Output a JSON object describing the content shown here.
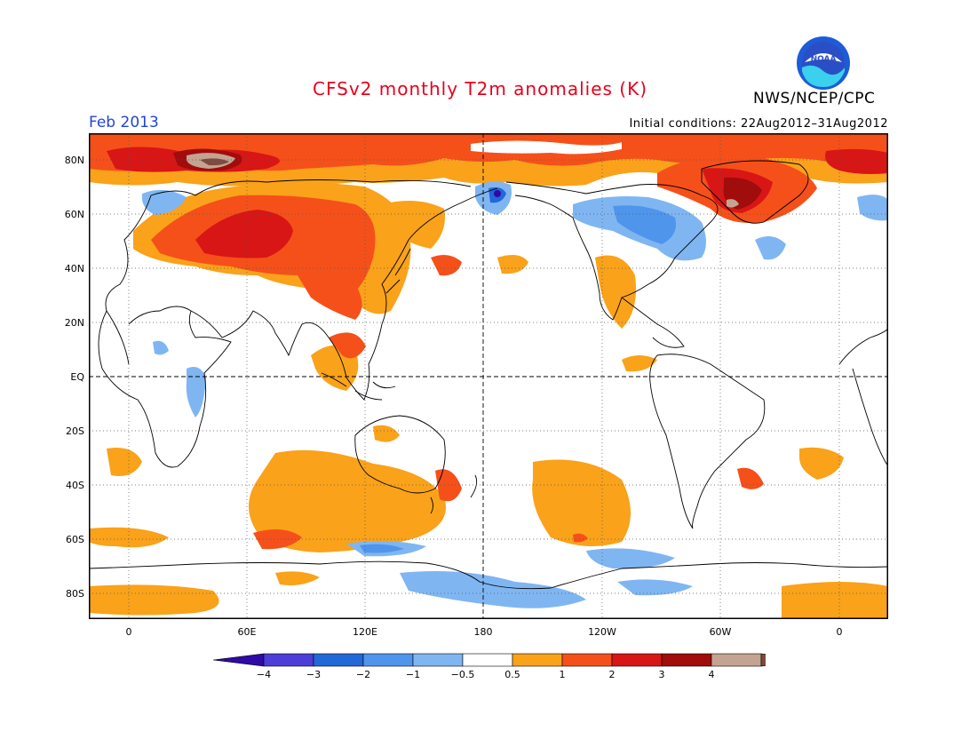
{
  "header": {
    "title": "CFSv2 monthly T2m anomalies (K)",
    "month": "Feb 2013",
    "initial_conditions": "Initial conditions: 22Aug2012–31Aug2012",
    "org": "NWS/NCEP/CPC",
    "logo_text": "NOAA"
  },
  "map": {
    "lat_labels": [
      "80N",
      "60N",
      "40N",
      "20N",
      "EQ",
      "20S",
      "40S",
      "60S",
      "80S"
    ],
    "lon_labels": [
      "0",
      "60E",
      "120E",
      "180",
      "120W",
      "60W",
      "0"
    ],
    "projection": "latitude-longitude",
    "grid": "dotted",
    "center_meridian": "180"
  },
  "colorbar": {
    "labels": [
      "−4",
      "−3",
      "−2",
      "−1",
      "−0.5",
      "0.5",
      "1",
      "2",
      "3",
      "4"
    ],
    "colors": [
      "#2f0aa6",
      "#4c3ed6",
      "#2268d6",
      "#4f95ec",
      "#7fb6f2",
      "#ffffff",
      "#f9a21a",
      "#f5501a",
      "#d81616",
      "#a10c0c",
      "#c4a392",
      "#7d4c3e"
    ]
  },
  "colors": {
    "title": "#e8001c",
    "month": "#2244dd",
    "ocean_land_background": "#ffffff"
  }
}
